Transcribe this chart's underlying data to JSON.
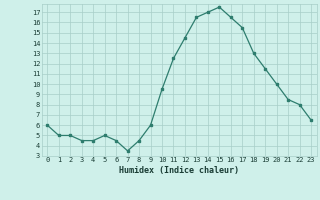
{
  "x": [
    0,
    1,
    2,
    3,
    4,
    5,
    6,
    7,
    8,
    9,
    10,
    11,
    12,
    13,
    14,
    15,
    16,
    17,
    18,
    19,
    20,
    21,
    22,
    23
  ],
  "y": [
    6,
    5,
    5,
    4.5,
    4.5,
    5,
    4.5,
    3.5,
    4.5,
    6,
    9.5,
    12.5,
    14.5,
    16.5,
    17,
    17.5,
    16.5,
    15.5,
    13,
    11.5,
    10,
    8.5,
    8,
    6.5
  ],
  "xlabel": "Humidex (Indice chaleur)",
  "ylim": [
    3,
    17.8
  ],
  "xlim": [
    -0.5,
    23.5
  ],
  "yticks": [
    3,
    4,
    5,
    6,
    7,
    8,
    9,
    10,
    11,
    12,
    13,
    14,
    15,
    16,
    17
  ],
  "xticks": [
    0,
    1,
    2,
    3,
    4,
    5,
    6,
    7,
    8,
    9,
    10,
    11,
    12,
    13,
    14,
    15,
    16,
    17,
    18,
    19,
    20,
    21,
    22,
    23
  ],
  "line_color": "#2e7d6e",
  "bg_color": "#cff0ea",
  "grid_color": "#a8cec8",
  "axis_label_color": "#1a3d35"
}
